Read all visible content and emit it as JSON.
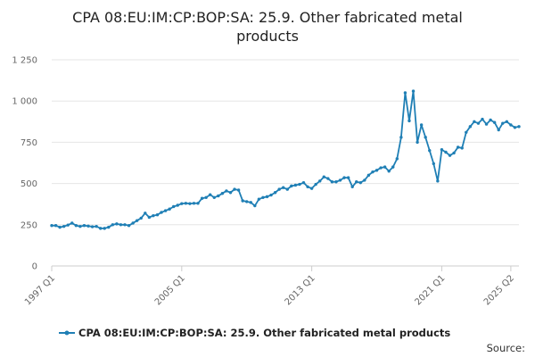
{
  "chart_data": {
    "type": "line",
    "title_lines": [
      "CPA 08:EU:IM:CP:BOP:SA: 25.9. Other fabricated metal",
      "products"
    ],
    "y_ticks": [
      {
        "value": 0,
        "label": "0"
      },
      {
        "value": 250,
        "label": "250"
      },
      {
        "value": 500,
        "label": "500"
      },
      {
        "value": 750,
        "label": "750"
      },
      {
        "value": 1000,
        "label": "1 000"
      },
      {
        "value": 1250,
        "label": "1 250"
      }
    ],
    "ylim": [
      0,
      1250
    ],
    "x_ticks": [
      {
        "index": 0,
        "label": "1997 Q1"
      },
      {
        "index": 32,
        "label": "2005 Q1"
      },
      {
        "index": 64,
        "label": "2013 Q1"
      },
      {
        "index": 96,
        "label": "2021 Q1"
      },
      {
        "index": 113,
        "label": "2025 Q2"
      }
    ],
    "grid": true,
    "legend_position": "bottom-center",
    "series": [
      {
        "name": "CPA 08:EU:IM:CP:BOP:SA: 25.9. Other fabricated metal products",
        "color": "#1f7fb5",
        "values": [
          245,
          245,
          235,
          240,
          248,
          260,
          245,
          240,
          245,
          242,
          238,
          240,
          228,
          228,
          235,
          250,
          255,
          250,
          250,
          245,
          260,
          275,
          290,
          320,
          295,
          305,
          310,
          325,
          335,
          345,
          360,
          368,
          378,
          380,
          378,
          380,
          380,
          410,
          415,
          432,
          415,
          425,
          440,
          455,
          445,
          465,
          460,
          395,
          390,
          385,
          365,
          405,
          415,
          420,
          430,
          445,
          465,
          475,
          465,
          485,
          490,
          495,
          505,
          480,
          470,
          495,
          515,
          540,
          530,
          510,
          510,
          520,
          535,
          535,
          480,
          510,
          505,
          520,
          550,
          570,
          580,
          595,
          600,
          575,
          600,
          650,
          780,
          1050,
          880,
          1060,
          750,
          855,
          780,
          700,
          620,
          515,
          705,
          690,
          670,
          685,
          720,
          715,
          810,
          845,
          875,
          865,
          890,
          860,
          885,
          870,
          825,
          865,
          875,
          855,
          840,
          845
        ]
      }
    ]
  },
  "source_label": "Source:"
}
